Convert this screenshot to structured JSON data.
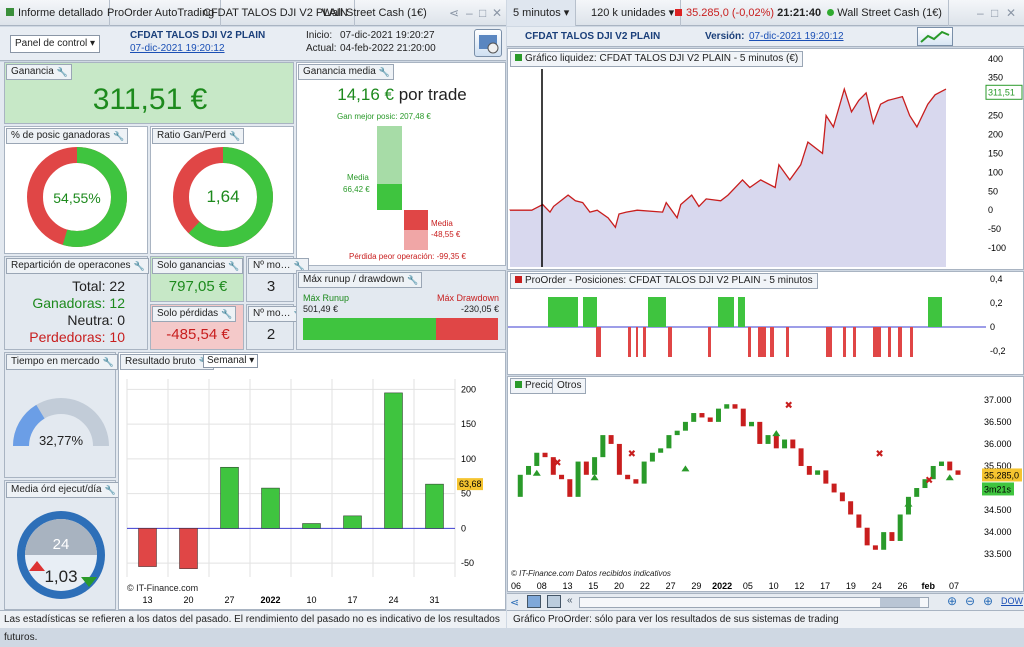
{
  "left_tabs": {
    "report": "Informe detallado",
    "autotrading": "ProOrder AutoTrading",
    "system": "CFDAT TALOS DJI V2 PLAIN",
    "market": "Wall Street Cash (1€)"
  },
  "right_tabs": {
    "interval": "5 minutos",
    "units": "120 k unidades",
    "price": "35.285,0 (-0,02%)",
    "time": "21:21:40",
    "market": "Wall Street Cash (1€)"
  },
  "header": {
    "control_panel": "Panel de control",
    "system_name": "CFDAT TALOS DJI V2 PLAIN",
    "system_date": "07-dic-2021 19:20:12",
    "start_label": "Inicio:",
    "start_value": "07-dic-2021 19:20:27",
    "current_label": "Actual:",
    "current_value": "04-feb-2022 21:20:00",
    "version_label": "Versión:",
    "version_value": "07-dic-2021 19:20:12"
  },
  "profit": {
    "label": "Ganancia",
    "value": "311,51 €"
  },
  "avg_gain": {
    "label": "Ganancia media",
    "value": "14,16 €",
    "suffix": "por trade",
    "best": "Gan mejor posic: 207,48 €",
    "media_pos_label": "Media",
    "media_pos_value": "66,42 €",
    "media_neg_label": "Media",
    "media_neg_value": "-48,55 €",
    "worst": "Pérdida peor operación: -99,35 €"
  },
  "win_pct": {
    "label": "% de posic ganadoras",
    "value": "54,55%",
    "fraction": 0.5455
  },
  "ratio": {
    "label": "Ratio Gan/Perd",
    "value": "1,64",
    "fraction": 0.62
  },
  "repartition": {
    "label": "Repartición de operacones",
    "total": "Total: 22",
    "winners": "Ganadoras: 12",
    "neutral": "Neutra: 0",
    "losers": "Perdedoras: 10"
  },
  "solo_gan": {
    "label": "Solo ganancias",
    "value": "797,05 €",
    "n_label": "Nº mo…",
    "n_value": "3"
  },
  "solo_perd": {
    "label": "Solo pérdidas",
    "value": "-485,54 €",
    "n_label": "Nº mo…",
    "n_value": "2"
  },
  "runup": {
    "label": "Máx runup / drawdown",
    "runup_label": "Máx Runup",
    "runup_value": "501,49 €",
    "dd_label": "Máx Drawdown",
    "dd_value": "-230,05 €"
  },
  "time_market": {
    "label": "Tiempo en mercado",
    "value": "32,77%",
    "fraction": 0.3277
  },
  "media_ord": {
    "label": "Media órd ejecut/día",
    "value": "1,03",
    "clock": "24"
  },
  "gross": {
    "label": "Resultado bruto",
    "period": "Semanal",
    "copyright": "© IT-Finance.com",
    "last": "63,68"
  },
  "chart_data": [
    {
      "type": "bar",
      "title": "Resultado bruto",
      "categories": [
        "13",
        "20",
        "27",
        "2022",
        "10",
        "17",
        "24",
        "31"
      ],
      "values": [
        -55,
        -58,
        88,
        58,
        7,
        18,
        195,
        63.68
      ],
      "ylim": [
        -70,
        215
      ],
      "yticks": [
        "200",
        "150",
        "100",
        "50",
        "0",
        "-50"
      ]
    },
    {
      "type": "area",
      "title": "Gráfico liquidez: CFDAT TALOS DJI V2 PLAIN - 5 minutos (€)",
      "yticks": [
        "400",
        "350",
        "300",
        "250",
        "200",
        "150",
        "100",
        "50",
        "0",
        "-50",
        "-100"
      ],
      "last": "311,51"
    },
    {
      "type": "bar",
      "title": "ProOrder - Posiciones: CFDAT TALOS DJI V2 PLAIN - 5 minutos",
      "yticks": [
        "0,4",
        "0,2",
        "0",
        "-0,2"
      ]
    },
    {
      "type": "line",
      "title": "Precio",
      "yticks": [
        "37.000",
        "36.500",
        "36.000",
        "35.500",
        "35.000",
        "34.500",
        "34.000",
        "33.500"
      ],
      "last": "35.285,0",
      "timer": "3m21s",
      "xticks": [
        "06",
        "08",
        "13",
        "15",
        "20",
        "22",
        "27",
        "29",
        "2022",
        "05",
        "10",
        "12",
        "17",
        "19",
        "24",
        "26",
        "feb",
        "07"
      ]
    }
  ],
  "liq_title": "Gráfico liquidez: CFDAT TALOS DJI V2 PLAIN - 5 minutos (€)",
  "pos_title": "ProOrder - Posiciones: CFDAT TALOS DJI V2 PLAIN - 5 minutos",
  "price_tabs": {
    "price": "Precio",
    "others": "Otros"
  },
  "price_footer": "© IT-Finance.com  Datos recibidos indicativos",
  "status_left": "Las estadísticas se refieren a los datos del pasado. El rendimiento del pasado no es indicativo de los resultados futuros.",
  "status_right": "Gráfico ProOrder: sólo para ver los resultados de sus sistemas de trading",
  "dow": "DOW"
}
